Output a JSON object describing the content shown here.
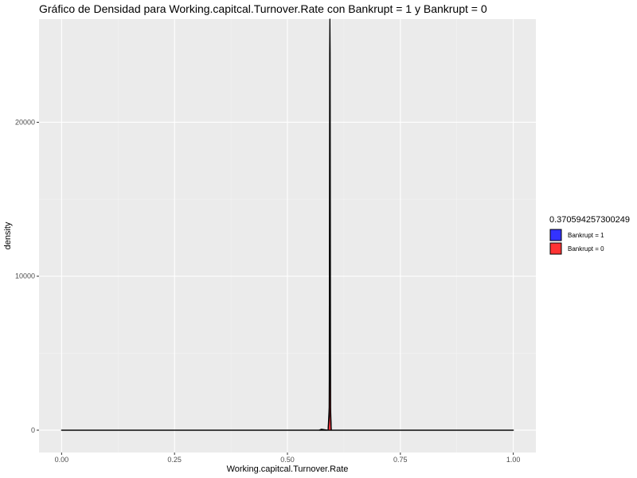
{
  "chart_data": {
    "type": "area",
    "title": "Gráfico de Densidad para Working.capitcal.Turnover.Rate con Bankrupt = 1 y Bankrupt = 0",
    "xlabel": "Working.capitcal.Turnover.Rate",
    "ylabel": "density",
    "xlim": [
      -0.05,
      1.05
    ],
    "ylim": [
      -1450,
      26700
    ],
    "x_ticks": [
      0,
      0.25,
      0.5,
      0.75,
      1
    ],
    "x_tick_labels": [
      "0.00",
      "0.25",
      "0.50",
      "0.75",
      "1.00"
    ],
    "y_ticks": [
      0,
      10000,
      20000
    ],
    "y_tick_labels": [
      "0",
      "10000",
      "20000"
    ],
    "grid": true,
    "legend": {
      "title": "0.370594257300249",
      "placement": "right",
      "entries": [
        {
          "label": "Bankrupt = 1",
          "color": "#3333ff"
        },
        {
          "label": "Bankrupt = 0",
          "color": "#ff3333"
        }
      ]
    },
    "colors": {
      "panel_bg": "#ebebeb",
      "grid_major": "#ffffff",
      "outline": "#000000"
    },
    "series": [
      {
        "name": "Bankrupt = 1",
        "color": "#3333ff",
        "x": [
          0,
          0.57,
          0.575,
          0.59,
          0.5925,
          0.5935,
          0.594,
          0.5945,
          0.5955,
          0.597,
          0.6,
          1
        ],
        "y": [
          0,
          0,
          60,
          0,
          1500,
          24500,
          26700,
          24500,
          1500,
          0,
          0,
          0
        ]
      },
      {
        "name": "Bankrupt = 0",
        "color": "#ff3333",
        "x": [
          0,
          0.59,
          0.5925,
          0.5935,
          0.594,
          0.5945,
          0.5955,
          0.597,
          1
        ],
        "y": [
          0,
          0,
          900,
          8600,
          9400,
          8600,
          900,
          0,
          0
        ]
      }
    ]
  }
}
